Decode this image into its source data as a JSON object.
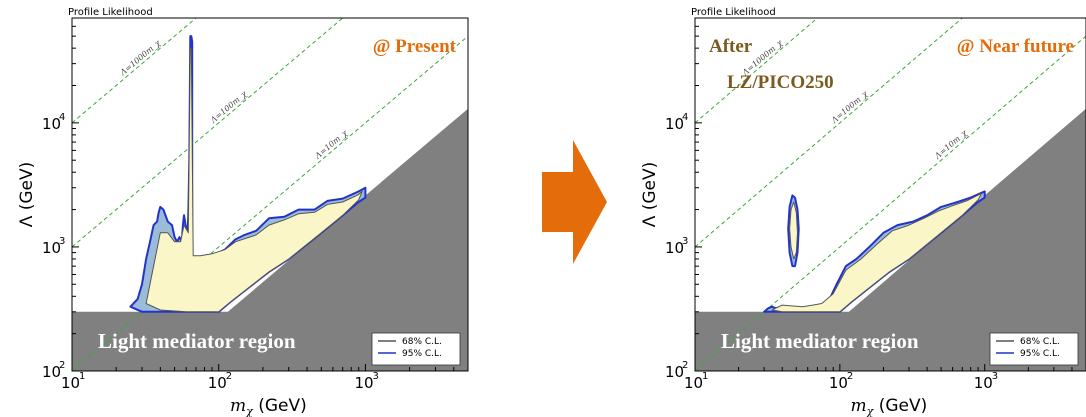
{
  "colors": {
    "light_region": "#808080",
    "cl68_fill": "#fbf6c8",
    "cl95_fill": "#9bbcd9",
    "cl95_line": "#2233cc",
    "cl68_line": "#555555",
    "guide_line": "#3aa83a",
    "present_label": "#e46c0a",
    "after_label": "#7a5a1e",
    "arrow": "#e46c0a"
  },
  "arrow": {
    "icon": "right-arrow-icon"
  },
  "chart_data": [
    {
      "type": "contour",
      "title": "Profile Likelihood",
      "xlabel": "m_χ (GeV)",
      "ylabel": "Λ (GeV)",
      "x_scale": "log",
      "y_scale": "log",
      "xlim": [
        10,
        5000
      ],
      "ylim": [
        100,
        70000
      ],
      "xticks": [
        "10¹",
        "10²",
        "10³"
      ],
      "yticks": [
        "10²",
        "10³",
        "10⁴"
      ],
      "stage_label": "@ Present",
      "region_label": "Light mediator region",
      "legend": {
        "position": "bottom-right",
        "entries": [
          "68% C.L.",
          "95% C.L."
        ]
      },
      "guides": [
        {
          "label": "Λ=1000m_χ",
          "ratio": 1000
        },
        {
          "label": "Λ=100m_χ",
          "ratio": 100
        },
        {
          "label": "Λ=10m_χ",
          "ratio": 10
        }
      ],
      "series": [
        {
          "name": "95% C.L.",
          "x": [
            25,
            28,
            30,
            32,
            34,
            36,
            38,
            39,
            40,
            42,
            45,
            48,
            50,
            52,
            54,
            56,
            57,
            58,
            60,
            61,
            62,
            63,
            64,
            65,
            66,
            66,
            68,
            75,
            90,
            110,
            130,
            150,
            180,
            220,
            280,
            350,
            450,
            550,
            700,
            900,
            1000,
            1000,
            900,
            700,
            500,
            300,
            220,
            160,
            120,
            100,
            80,
            60,
            40,
            30,
            25
          ],
          "y": [
            330,
            380,
            500,
            800,
            1100,
            1500,
            1600,
            1900,
            2100,
            2000,
            1600,
            1500,
            1200,
            1100,
            1200,
            1100,
            1500,
            1800,
            1400,
            1100,
            1800,
            5000,
            50000,
            50000,
            45000,
            800,
            800,
            820,
            850,
            950,
            1150,
            1250,
            1350,
            1700,
            1750,
            2000,
            2000,
            2350,
            2450,
            2800,
            3000,
            2500,
            2300,
            1800,
            1300,
            800,
            630,
            470,
            360,
            300,
            300,
            300,
            300,
            300,
            330
          ]
        },
        {
          "name": "68% C.L.",
          "x": [
            32,
            36,
            40,
            45,
            50,
            55,
            58,
            62,
            64,
            65,
            67,
            75,
            90,
            110,
            130,
            180,
            220,
            280,
            350,
            450,
            550,
            700,
            900,
            950,
            900,
            700,
            500,
            300,
            220,
            160,
            120,
            100,
            80,
            60,
            40,
            32
          ],
          "y": [
            350,
            700,
            1300,
            1300,
            1100,
            1100,
            1500,
            1300,
            40000,
            40000,
            850,
            850,
            880,
            950,
            1100,
            1250,
            1500,
            1650,
            1850,
            1900,
            2200,
            2300,
            2650,
            2800,
            2400,
            1800,
            1300,
            800,
            630,
            470,
            360,
            300,
            300,
            300,
            310,
            350
          ]
        }
      ]
    },
    {
      "type": "contour",
      "title": "Profile Likelihood",
      "xlabel": "m_χ (GeV)",
      "ylabel": "Λ (GeV)",
      "x_scale": "log",
      "y_scale": "log",
      "xlim": [
        10,
        5000
      ],
      "ylim": [
        100,
        70000
      ],
      "xticks": [
        "10¹",
        "10²",
        "10³"
      ],
      "yticks": [
        "10²",
        "10³",
        "10⁴"
      ],
      "stage_label": "@ Near future",
      "note_lines": [
        "After",
        "LZ/PICO250"
      ],
      "region_label": "Light mediator region",
      "legend": {
        "position": "bottom-right",
        "entries": [
          "68% C.L.",
          "95% C.L."
        ]
      },
      "guides": [
        {
          "label": "Λ=1000m_χ",
          "ratio": 1000
        },
        {
          "label": "Λ=100m_χ",
          "ratio": 100
        },
        {
          "label": "Λ=10m_χ",
          "ratio": 10
        }
      ],
      "series": [
        {
          "name": "95% C.L.",
          "x": [
            30,
            32,
            34,
            36,
            40,
            55,
            60,
            65,
            75,
            85,
            95,
            110,
            130,
            160,
            200,
            250,
            320,
            400,
            500,
            650,
            800,
            1000,
            1000,
            900,
            700,
            500,
            300,
            220,
            160,
            120,
            100,
            80,
            60,
            40,
            30
          ],
          "y": [
            300,
            320,
            330,
            320,
            330,
            320,
            330,
            330,
            340,
            380,
            500,
            700,
            800,
            1000,
            1300,
            1500,
            1600,
            1800,
            2100,
            2300,
            2500,
            2800,
            2500,
            2300,
            1800,
            1300,
            800,
            630,
            470,
            360,
            300,
            300,
            300,
            300,
            300
          ]
        },
        {
          "name": "95% C.L. island",
          "x": [
            45,
            47,
            49,
            51,
            52,
            51,
            49,
            47,
            45,
            44,
            45
          ],
          "y": [
            900,
            700,
            700,
            900,
            1400,
            2000,
            2500,
            2600,
            2100,
            1400,
            900
          ]
        },
        {
          "name": "68% C.L.",
          "x": [
            34,
            40,
            55,
            65,
            75,
            90,
            110,
            140,
            180,
            230,
            300,
            380,
            480,
            600,
            750,
            950,
            900,
            700,
            500,
            300,
            220,
            160,
            120,
            100,
            80,
            60,
            40,
            34
          ],
          "y": [
            310,
            340,
            330,
            340,
            350,
            420,
            650,
            800,
            1050,
            1350,
            1500,
            1700,
            1950,
            2150,
            2350,
            2700,
            2400,
            1800,
            1300,
            800,
            630,
            470,
            360,
            300,
            300,
            300,
            300,
            310
          ]
        },
        {
          "name": "68% C.L. island",
          "x": [
            46,
            48,
            50,
            51,
            50,
            48,
            46,
            45,
            46
          ],
          "y": [
            1000,
            800,
            900,
            1300,
            1900,
            2300,
            2000,
            1400,
            1000
          ]
        }
      ]
    }
  ]
}
